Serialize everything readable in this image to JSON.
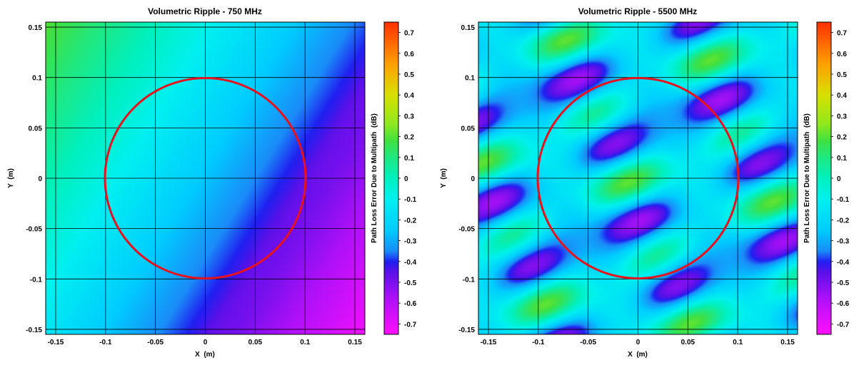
{
  "chart_data": [
    {
      "type": "heatmap",
      "title": "Volumetric Ripple - 750 MHz",
      "xlabel": "X  (m)",
      "ylabel": "Y  (m)",
      "xlim": [
        -0.16,
        0.16
      ],
      "ylim": [
        -0.155,
        0.155
      ],
      "xticks": [
        -0.15,
        -0.1,
        -0.05,
        0,
        0.05,
        0.1,
        0.15
      ],
      "xtick_labels": [
        "-0.15",
        "-0.1",
        "-0.05",
        "0",
        "0.05",
        "0.1",
        "0.15"
      ],
      "yticks": [
        -0.15,
        -0.1,
        -0.05,
        0,
        0.05,
        0.1,
        0.15
      ],
      "ytick_labels": [
        "-0.15",
        "-0.1",
        "-0.05",
        "0",
        "0.05",
        "0.1",
        "0.15"
      ],
      "grid": true,
      "field": {
        "pattern": "gradient",
        "direction_deg": -32,
        "range": [
          -0.72,
          0.2
        ],
        "fold_value": -0.45,
        "fold_offset": 0.02
      },
      "circle": {
        "cx": 0,
        "cy": 0,
        "r": 0.1,
        "color": "#e8121c"
      },
      "colorbar": {
        "label": "Path Loss Error Due to Multipath  (dB)",
        "min": -0.75,
        "max": 0.75,
        "ticks": [
          0.7,
          0.6,
          0.5,
          0.4,
          0.3,
          0.2,
          0.1,
          0,
          -0.1,
          -0.2,
          -0.3,
          -0.4,
          -0.5,
          -0.6,
          -0.7
        ],
        "tick_labels": [
          "0.7",
          "0.6",
          "0.5",
          "0.4",
          "0.3",
          "0.2",
          "0.1",
          "0",
          "-0.1",
          "-0.2",
          "-0.3",
          "-0.4",
          "-0.5",
          "-0.6",
          "-0.7"
        ]
      }
    },
    {
      "type": "heatmap",
      "title": "Volumetric Ripple - 5500 MHz",
      "xlabel": "X  (m)",
      "ylabel": "Y  (m)",
      "xlim": [
        -0.16,
        0.16
      ],
      "ylim": [
        -0.155,
        0.155
      ],
      "xticks": [
        -0.15,
        -0.1,
        -0.05,
        0,
        0.05,
        0.1,
        0.15
      ],
      "xtick_labels": [
        "-0.15",
        "-0.1",
        "-0.05",
        "0",
        "0.05",
        "0.1",
        "0.15"
      ],
      "yticks": [
        -0.15,
        -0.1,
        -0.05,
        0,
        0.05,
        0.1,
        0.15
      ],
      "ytick_labels": [
        "-0.15",
        "-0.1",
        "-0.05",
        "0",
        "0.05",
        "0.1",
        "0.15"
      ],
      "grid": true,
      "field": {
        "pattern": "ripple",
        "stripe_angle_deg": 24,
        "stripe_spacing_m": 0.077,
        "along_period_m": 0.125,
        "mean": -0.2,
        "amplitude": 0.33
      },
      "circle": {
        "cx": 0,
        "cy": 0,
        "r": 0.1,
        "color": "#e8121c"
      },
      "colorbar": {
        "label": "Path Loss Error Due to Multipath  (dB)",
        "min": -0.75,
        "max": 0.75,
        "ticks": [
          0.7,
          0.6,
          0.5,
          0.4,
          0.3,
          0.2,
          0.1,
          0,
          -0.1,
          -0.2,
          -0.3,
          -0.4,
          -0.5,
          -0.6,
          -0.7
        ],
        "tick_labels": [
          "0.7",
          "0.6",
          "0.5",
          "0.4",
          "0.3",
          "0.2",
          "0.1",
          "0",
          "-0.1",
          "-0.2",
          "-0.3",
          "-0.4",
          "-0.5",
          "-0.6",
          "-0.7"
        ]
      }
    }
  ],
  "colormap": {
    "stops": [
      {
        "v": -0.75,
        "color": "#ff10ff"
      },
      {
        "v": -0.58,
        "color": "#b010f8"
      },
      {
        "v": -0.45,
        "color": "#5a10e8"
      },
      {
        "v": -0.4,
        "color": "#2020f0"
      },
      {
        "v": -0.35,
        "color": "#1a8cf8"
      },
      {
        "v": -0.25,
        "color": "#00ccff"
      },
      {
        "v": -0.1,
        "color": "#00f0f0"
      },
      {
        "v": 0.0,
        "color": "#00f0c0"
      },
      {
        "v": 0.1,
        "color": "#20e880"
      },
      {
        "v": 0.18,
        "color": "#40e040"
      },
      {
        "v": 0.26,
        "color": "#90e820"
      },
      {
        "v": 0.4,
        "color": "#d8e000"
      },
      {
        "v": 0.55,
        "color": "#ffa000"
      },
      {
        "v": 0.75,
        "color": "#ff3000"
      }
    ]
  }
}
